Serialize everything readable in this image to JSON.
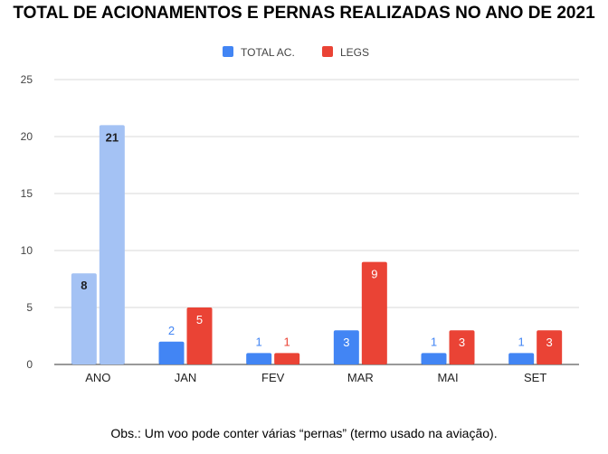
{
  "chart_data": {
    "type": "bar",
    "title": "TOTAL DE ACIONAMENTOS E PERNAS REALIZADAS NO ANO DE 2021",
    "categories": [
      "ANO",
      "JAN",
      "FEV",
      "MAR",
      "MAI",
      "SET"
    ],
    "series": [
      {
        "name": "TOTAL AC.",
        "values": [
          8,
          2,
          1,
          3,
          1,
          1
        ],
        "color": "#4285f4",
        "highlight_color": "#a4c2f4",
        "value_labels": [
          "8",
          "2",
          "1",
          "3",
          "1",
          "1"
        ]
      },
      {
        "name": "LEGS",
        "values": [
          21,
          5,
          1,
          9,
          3,
          3
        ],
        "color": "#ea4335",
        "highlight_color": "#a4c2f4",
        "value_labels": [
          "21",
          "5",
          "1",
          "9",
          "3",
          "3"
        ]
      }
    ],
    "highlight_category": "ANO",
    "ylim": [
      0,
      25
    ],
    "yticks": [
      0,
      5,
      10,
      15,
      20,
      25
    ],
    "ytick_labels": [
      "0",
      "5",
      "10",
      "15",
      "20",
      "25"
    ],
    "xlabel": "",
    "ylabel": "",
    "legend_position": "top-center",
    "grid": true
  },
  "note": "Obs.: Um voo pode conter várias “pernas” (termo usado na aviação)."
}
